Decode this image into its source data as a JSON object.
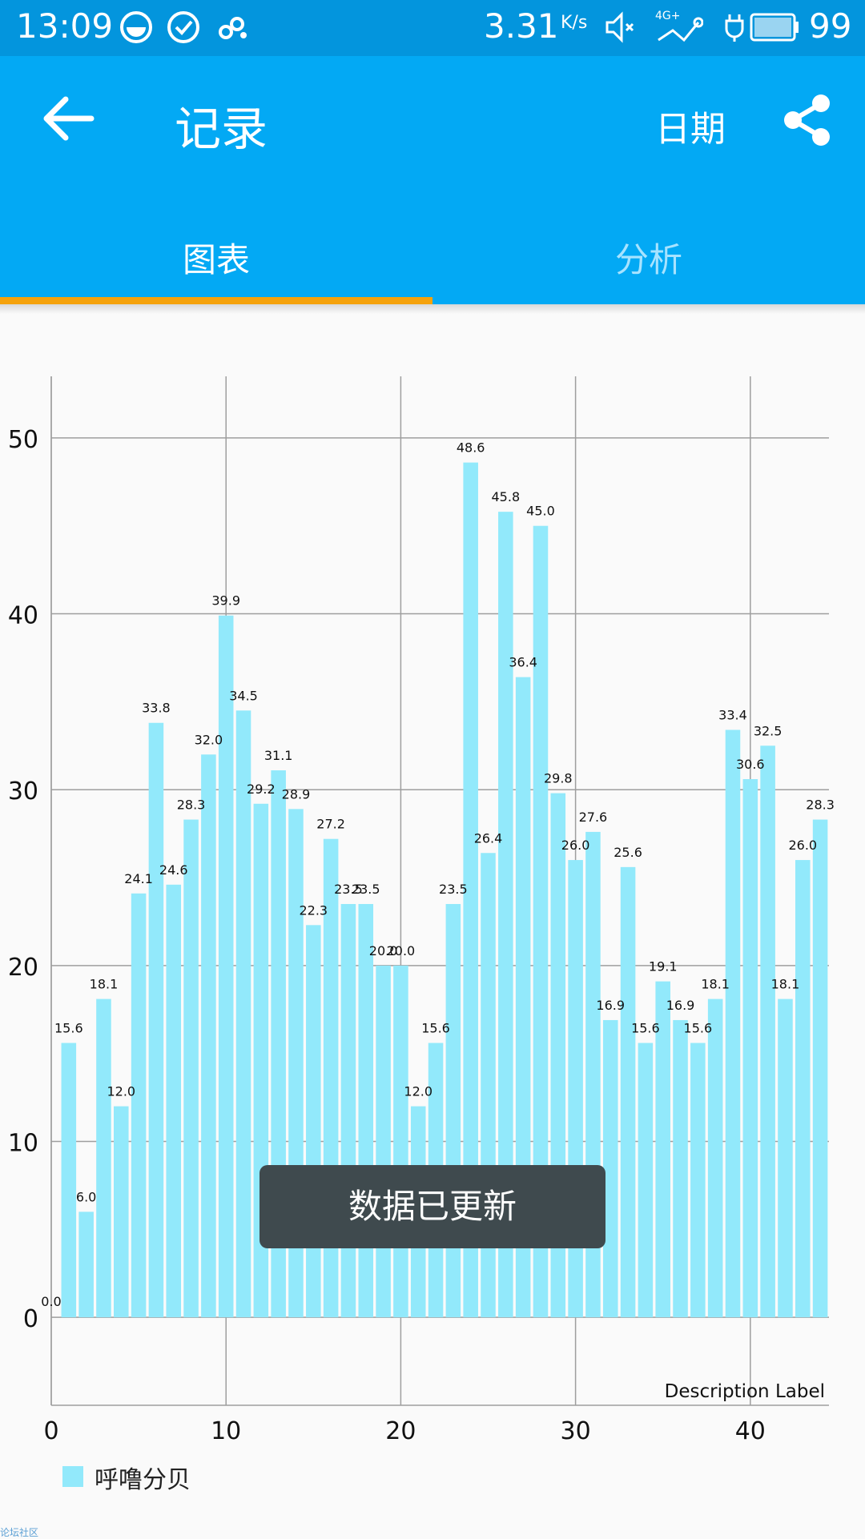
{
  "status_bar": {
    "time": "13:09",
    "speed": "3.31",
    "speed_unit": "K/s",
    "network": "4G+",
    "battery": "99",
    "icons": [
      "face-icon",
      "check-circle-icon",
      "link-icon",
      "mute-icon",
      "signal-icon",
      "charging-icon",
      "battery-icon"
    ]
  },
  "app_bar": {
    "back_icon": "arrow-left-icon",
    "title": "记录",
    "date_label": "日期",
    "share_icon": "share-icon"
  },
  "tabs": [
    {
      "label": "图表",
      "active": true
    },
    {
      "label": "分析",
      "active": false
    }
  ],
  "toast": "数据已更新",
  "footer": "论坛社区",
  "colors": {
    "status_bar": "#0395dd",
    "app_bar": "#03a9f4",
    "tab_indicator": "#f5a20c",
    "bar": "#92e9fb",
    "inactive_tab": "#a7e3ff"
  },
  "chart_data": {
    "type": "bar",
    "title": "",
    "description_label": "Description Label",
    "x": [
      1,
      2,
      3,
      4,
      5,
      6,
      7,
      8,
      9,
      10,
      11,
      12,
      13,
      14,
      15,
      16,
      17,
      18,
      19,
      20,
      21,
      22,
      23,
      24,
      25,
      26,
      27,
      28,
      29,
      30,
      31,
      32,
      33,
      34,
      35,
      36,
      37,
      38,
      39,
      40,
      41,
      42,
      43,
      44
    ],
    "values": [
      15.6,
      6.0,
      18.1,
      12.0,
      24.1,
      33.8,
      24.6,
      28.3,
      32.0,
      39.9,
      34.5,
      29.2,
      31.1,
      28.9,
      22.3,
      27.2,
      23.5,
      23.5,
      20.0,
      20.0,
      12.0,
      15.6,
      23.5,
      48.6,
      26.4,
      45.8,
      36.4,
      45.0,
      29.8,
      26.0,
      27.6,
      16.9,
      25.6,
      15.6,
      19.1,
      16.9,
      15.6,
      18.1,
      33.4,
      30.6,
      32.5,
      18.1,
      26.0,
      28.3
    ],
    "zero_label": "0.0",
    "xlim": [
      0,
      44.5
    ],
    "ylim": [
      -5,
      53.5
    ],
    "x_ticks": [
      0,
      10,
      20,
      30,
      40
    ],
    "y_ticks": [
      0,
      10,
      20,
      30,
      40,
      50
    ],
    "grid": true,
    "series": [
      {
        "name": "呼噜分贝"
      }
    ],
    "legend_position": "bottom-left"
  }
}
